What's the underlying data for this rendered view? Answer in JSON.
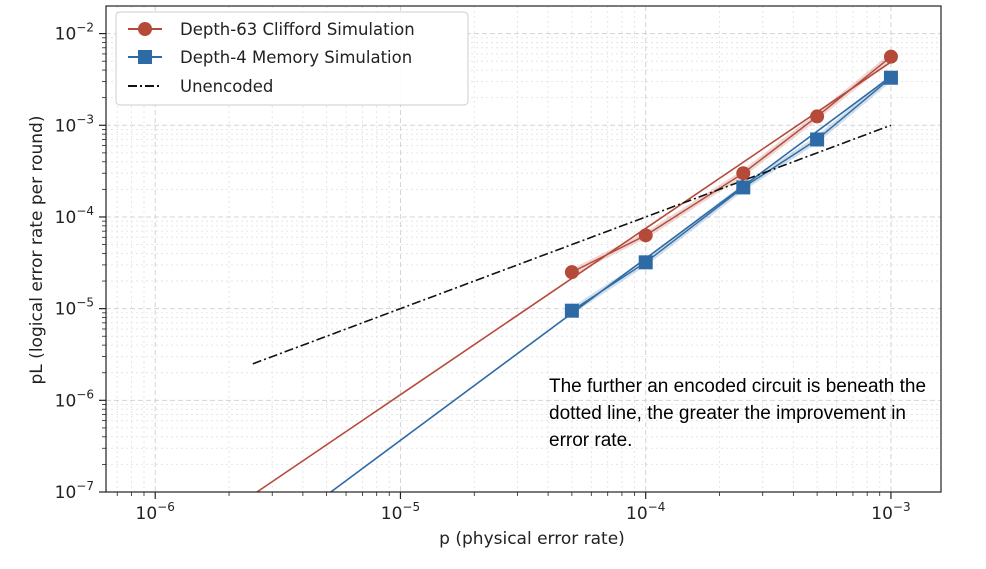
{
  "chart_data": {
    "type": "line",
    "xscale": "log",
    "yscale": "log",
    "xlim": [
      6.3e-07,
      0.0016
    ],
    "ylim": [
      1e-07,
      0.02
    ],
    "xlabel": "p (physical error rate)",
    "ylabel": "pL (logical error rate per round)",
    "x_ticks": [
      {
        "base": "10",
        "exp": "−6",
        "value": 1e-06
      },
      {
        "base": "10",
        "exp": "−5",
        "value": 1e-05
      },
      {
        "base": "10",
        "exp": "−4",
        "value": 0.0001
      },
      {
        "base": "10",
        "exp": "−3",
        "value": 0.001
      }
    ],
    "y_ticks": [
      {
        "base": "10",
        "exp": "−7",
        "value": 1e-07
      },
      {
        "base": "10",
        "exp": "−6",
        "value": 1e-06
      },
      {
        "base": "10",
        "exp": "−5",
        "value": 1e-05
      },
      {
        "base": "10",
        "exp": "−4",
        "value": 0.0001
      },
      {
        "base": "10",
        "exp": "−3",
        "value": 0.001
      },
      {
        "base": "10",
        "exp": "−2",
        "value": 0.01
      }
    ],
    "grid": true,
    "legend_position": "top-left",
    "series": [
      {
        "name": "Depth-63 Clifford Simulation",
        "color": "#b5493a",
        "marker": "circle",
        "x": [
          5e-05,
          0.0001,
          0.00025,
          0.0005,
          0.001
        ],
        "y": [
          2.5e-05,
          6.3e-05,
          0.0003,
          0.00125,
          0.0056
        ],
        "fit_x": [
          2.6e-06,
          0.001
        ],
        "fit_y": [
          1e-07,
          0.0049
        ]
      },
      {
        "name": "Depth-4 Memory Simulation",
        "color": "#2e6aa6",
        "marker": "square",
        "x": [
          5e-05,
          0.0001,
          0.00025,
          0.0005,
          0.001
        ],
        "y": [
          9.5e-06,
          3.2e-05,
          0.00021,
          0.0007,
          0.0033
        ],
        "fit_x": [
          5.2e-06,
          0.001
        ],
        "fit_y": [
          1e-07,
          0.0034
        ]
      },
      {
        "name": "Unencoded",
        "color": "#111111",
        "marker": "none",
        "dash": "dashdot",
        "x": [
          2.5e-06,
          0.001
        ],
        "y": [
          2.5e-06,
          0.001
        ]
      }
    ],
    "annotation": "The further an encoded circuit is beneath the dotted line, the greater the improvement in error rate."
  }
}
